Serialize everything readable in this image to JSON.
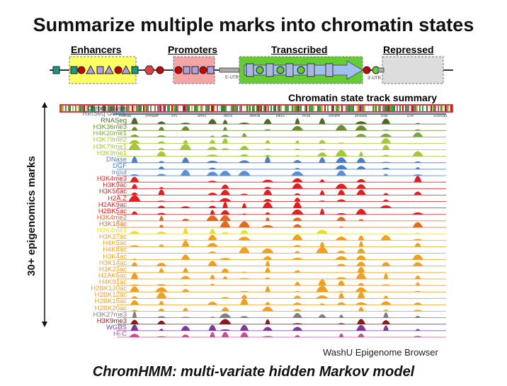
{
  "title": "Summarize multiple marks into chromatin states",
  "diagram": {
    "enhancers": "Enhancers",
    "promoters": "Promoters",
    "transcribed": "Transcribed",
    "repressed": "Repressed",
    "utr5": "5'-UTR",
    "utr3": "3'-UTR"
  },
  "summary_title": "Chromatin state track summary",
  "axis_label": "30+ epigenomics marks",
  "state_track_label": "Chrom. states",
  "genes_label": "RefSeq Genes",
  "gene_names": [
    "FAM20B",
    "ATP6B8P",
    "ST1",
    "NPR2",
    "RECK",
    "RNF38",
    "MELK",
    "PAX5",
    "GRHPR",
    "ZFAND5",
    "GNE",
    "CA9",
    "ALDH1B1"
  ],
  "tracks": [
    {
      "label": "RNASeq",
      "color": "#4f6a28"
    },
    {
      "label": "H3K36me3",
      "color": "#6a8c2c"
    },
    {
      "label": "H4K20me1",
      "color": "#7fa637"
    },
    {
      "label": "H3K79me2",
      "color": "#a7c73a"
    },
    {
      "label": "H3K79me1",
      "color": "#a7c73a"
    },
    {
      "label": "H3K9me1",
      "color": "#a7c73a"
    },
    {
      "label": "DNase",
      "color": "#4b80c6"
    },
    {
      "label": "DGF",
      "color": "#4b80c6"
    },
    {
      "label": "Input",
      "color": "#5b8fd0"
    },
    {
      "label": "H3K4me3",
      "color": "#e02020"
    },
    {
      "label": "H3K9ac",
      "color": "#e02020"
    },
    {
      "label": "H3K56ac",
      "color": "#e02020"
    },
    {
      "label": "H2A.Z",
      "color": "#e02020"
    },
    {
      "label": "H2AK9ac",
      "color": "#e02020"
    },
    {
      "label": "H2BK5ac",
      "color": "#e02020"
    },
    {
      "label": "H3K4me2",
      "color": "#e06a20"
    },
    {
      "label": "H3K18ac",
      "color": "#e06a20"
    },
    {
      "label": "H3K4me1",
      "color": "#e8e020"
    },
    {
      "label": "H3K27ac",
      "color": "#f0a020"
    },
    {
      "label": "H4K5ac",
      "color": "#f0a020"
    },
    {
      "label": "H4K8ac",
      "color": "#f0a020"
    },
    {
      "label": "H3K4ac",
      "color": "#f0a020"
    },
    {
      "label": "H3K14ac",
      "color": "#f0a020"
    },
    {
      "label": "H3K23ac",
      "color": "#f0a020"
    },
    {
      "label": "H2AK5ac",
      "color": "#f0a020"
    },
    {
      "label": "H4K91ac",
      "color": "#f0a020"
    },
    {
      "label": "H2BK120ac",
      "color": "#f0a020"
    },
    {
      "label": "H2BK12ac",
      "color": "#f0a020"
    },
    {
      "label": "H2BK15ac",
      "color": "#f0a020"
    },
    {
      "label": "H2BK20ac",
      "color": "#f0a020"
    },
    {
      "label": "H3K27me3",
      "color": "#808080"
    },
    {
      "label": "H3K9me3",
      "color": "#8b1a1a"
    },
    {
      "label": "WGBS",
      "color": "#7a3a9a"
    },
    {
      "label": "Hi-C",
      "color": "#d04a9a"
    }
  ],
  "credit": "WashU Epigenome Browser",
  "footer": "ChromHMM: multi-variate hidden Markov model",
  "colors": {
    "enhancer_box": "#ffff66",
    "promoter_box": "#f4a6a6",
    "transcribed_box": "#66cc33",
    "repressed_box": "#dddddd",
    "state_track_border": "#cc0000"
  }
}
